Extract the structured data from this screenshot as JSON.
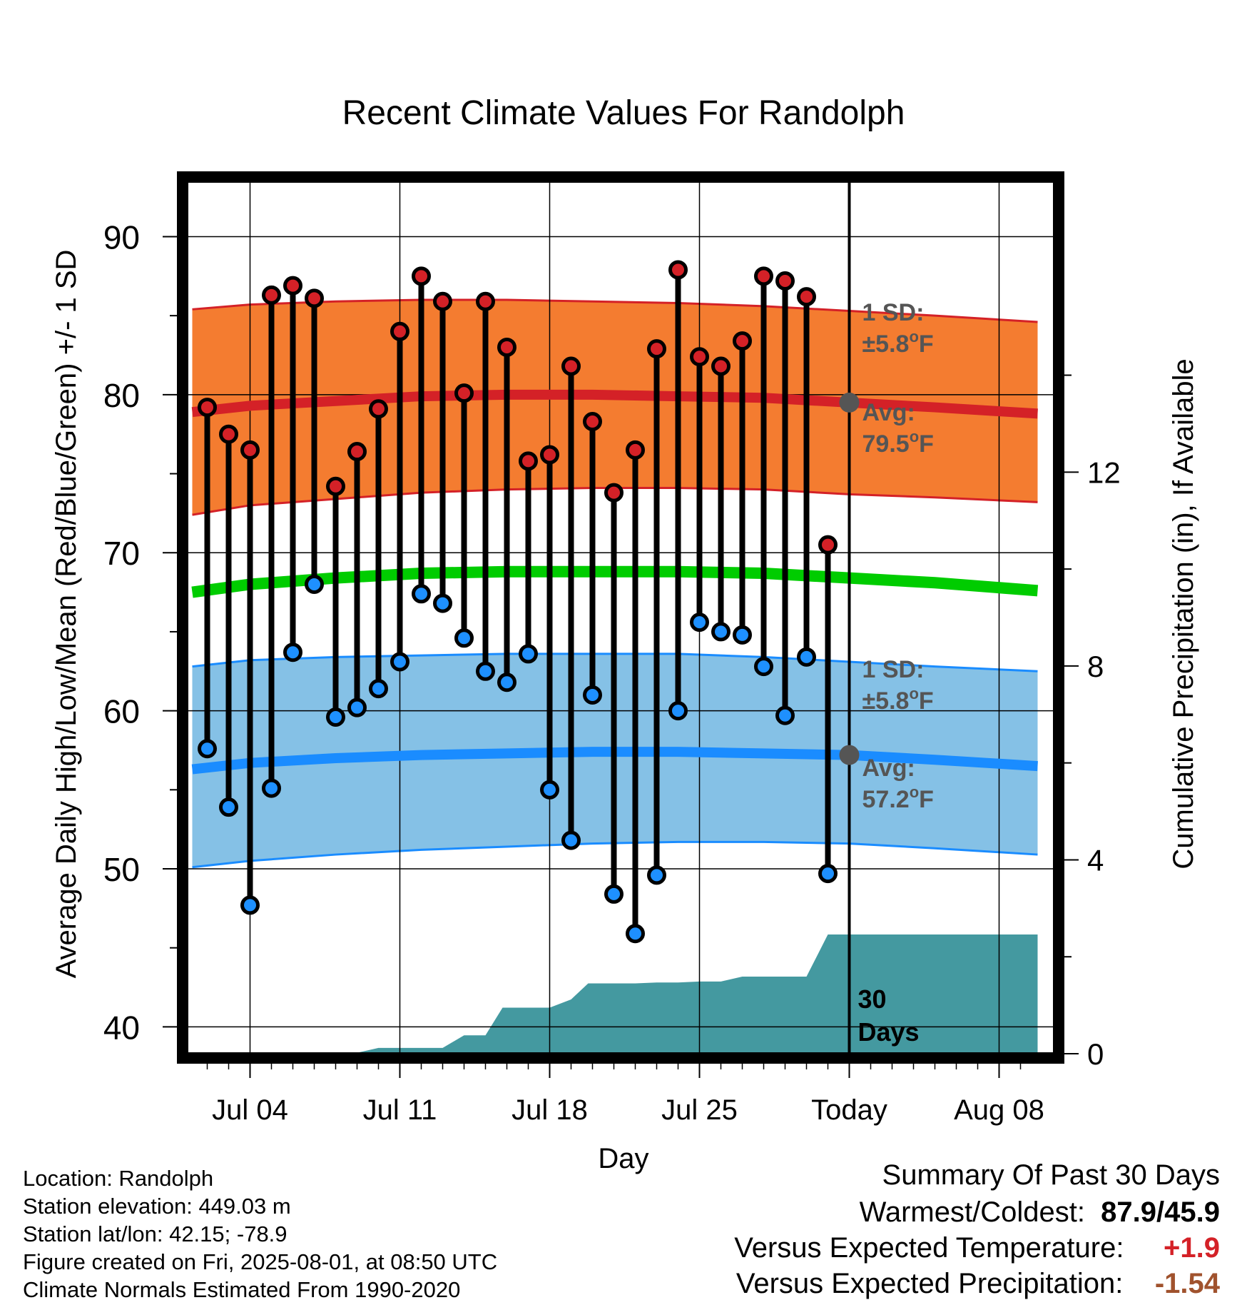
{
  "chart_data": {
    "type": "line",
    "title": "Recent Climate Values For Randolph",
    "xlabel": "Day",
    "ylabel": "Average Daily High/Low/Mean (Red/Blue/Green) +/- 1 SD",
    "y2label": "Cumulative Precipitation (in), If Available",
    "ylim": [
      38.3,
      93.5
    ],
    "y2lim": [
      0,
      18
    ],
    "y_ticks": [
      "40",
      "50",
      "60",
      "70",
      "80",
      "90"
    ],
    "y2_ticks": [
      "0",
      "4",
      "8",
      "12"
    ],
    "x_ticks": [
      {
        "label": "Jul 04",
        "day": 4
      },
      {
        "label": "Jul 11",
        "day": 11
      },
      {
        "label": "Jul 18",
        "day": 18
      },
      {
        "label": "Jul 25",
        "day": 25
      },
      {
        "label": "Today",
        "day": 32
      },
      {
        "label": "Aug 08",
        "day": 39
      }
    ],
    "grid": true,
    "days": [
      2,
      3,
      4,
      5,
      6,
      7,
      8,
      9,
      10,
      11,
      12,
      13,
      14,
      15,
      16,
      17,
      18,
      19,
      20,
      21,
      22,
      23,
      24,
      25,
      26,
      27,
      28,
      29,
      30,
      31
    ],
    "highs": [
      79.2,
      77.5,
      76.5,
      86.3,
      86.9,
      86.1,
      74.2,
      76.4,
      79.1,
      84.0,
      87.5,
      85.9,
      80.1,
      85.9,
      83.0,
      75.8,
      76.2,
      81.8,
      78.3,
      73.8,
      76.5,
      82.9,
      87.9,
      82.4,
      81.8,
      83.4,
      87.5,
      87.2,
      86.2,
      70.5
    ],
    "lows": [
      57.6,
      53.9,
      47.7,
      55.1,
      63.7,
      68.0,
      59.6,
      60.2,
      61.4,
      63.1,
      67.4,
      66.8,
      64.6,
      62.5,
      61.8,
      63.6,
      55.0,
      51.8,
      61.0,
      48.4,
      45.9,
      49.6,
      60.0,
      65.6,
      65.0,
      64.8,
      62.8,
      59.7,
      63.4,
      49.7
    ],
    "normals": {
      "days": [
        1.3,
        4,
        8,
        12,
        16,
        20,
        24,
        28,
        32,
        36,
        40.8
      ],
      "high_avg": [
        78.9,
        79.3,
        79.6,
        79.9,
        80.0,
        80.0,
        79.9,
        79.8,
        79.5,
        79.2,
        78.8
      ],
      "high_upper": [
        85.4,
        85.7,
        85.9,
        86.0,
        86.0,
        85.9,
        85.8,
        85.6,
        85.3,
        85.0,
        84.6
      ],
      "high_lower": [
        72.4,
        73.0,
        73.4,
        73.8,
        74.0,
        74.1,
        74.1,
        74.0,
        73.7,
        73.5,
        73.2
      ],
      "mean_avg": [
        67.5,
        68.0,
        68.4,
        68.7,
        68.8,
        68.8,
        68.8,
        68.7,
        68.4,
        68.1,
        67.6
      ],
      "low_avg": [
        56.3,
        56.7,
        57.0,
        57.2,
        57.3,
        57.4,
        57.4,
        57.3,
        57.2,
        56.9,
        56.5
      ],
      "low_upper": [
        62.8,
        63.2,
        63.4,
        63.5,
        63.6,
        63.6,
        63.6,
        63.4,
        63.1,
        62.8,
        62.5
      ],
      "low_lower": [
        50.1,
        50.5,
        50.9,
        51.2,
        51.4,
        51.6,
        51.7,
        51.7,
        51.6,
        51.3,
        50.9
      ]
    },
    "precip": {
      "days": [
        1.3,
        7.5,
        8.8,
        10,
        11,
        12,
        13,
        14,
        15,
        15.8,
        16,
        17,
        18,
        19,
        19.8,
        20,
        21,
        22,
        23,
        24,
        25,
        26,
        27,
        28,
        29,
        30,
        31,
        31.8,
        32,
        40.8
      ],
      "values": [
        0,
        0,
        0,
        0.12,
        0.12,
        0.12,
        0.12,
        0.38,
        0.38,
        0.95,
        0.95,
        0.95,
        0.95,
        1.12,
        1.45,
        1.45,
        1.45,
        1.45,
        1.47,
        1.47,
        1.49,
        1.49,
        1.59,
        1.59,
        1.59,
        1.59,
        2.46,
        2.46,
        2.46,
        2.46
      ]
    },
    "annotations": {
      "today_high_avg": 79.5,
      "today_low_avg": 57.2,
      "high_sd_label": "1 SD:",
      "high_sd_value": "±5.8",
      "high_avg_label": "Avg:",
      "high_avg_value": "79.5",
      "low_sd_label": "1 SD:",
      "low_sd_value": "±5.8",
      "low_avg_label": "Avg:",
      "low_avg_value": "57.2",
      "unit": "°F",
      "precip_label_1": "30",
      "precip_label_2": "Days"
    },
    "colors": {
      "high_band": "#f47c30",
      "high_line": "#d42127",
      "mean_line": "#00cc00",
      "low_band": "#85c1e6",
      "low_line": "#1a8cff",
      "precip": "#4499a0",
      "high_marker": "#d42127",
      "low_marker": "#1e90ff",
      "annotation": "#555555"
    }
  },
  "footer": {
    "location": "Location: Randolph",
    "elevation": "Station elevation: 449.03 m",
    "latlon": "Station lat/lon: 42.15; -78.9",
    "created": "Figure created on Fri, 2025-08-01, at 08:50 UTC",
    "normals": "Climate Normals Estimated From 1990-2020"
  },
  "summary": {
    "title": "Summary Of Past 30 Days",
    "warm_cold_label": "Warmest/Coldest:",
    "warm_cold_value": "87.9/45.9",
    "temp_label": "Versus Expected Temperature:",
    "temp_value": "+1.9",
    "temp_color": "#d42127",
    "precip_label": "Versus Expected Precipitation:",
    "precip_value": "-1.54",
    "precip_color": "#a0522d"
  }
}
